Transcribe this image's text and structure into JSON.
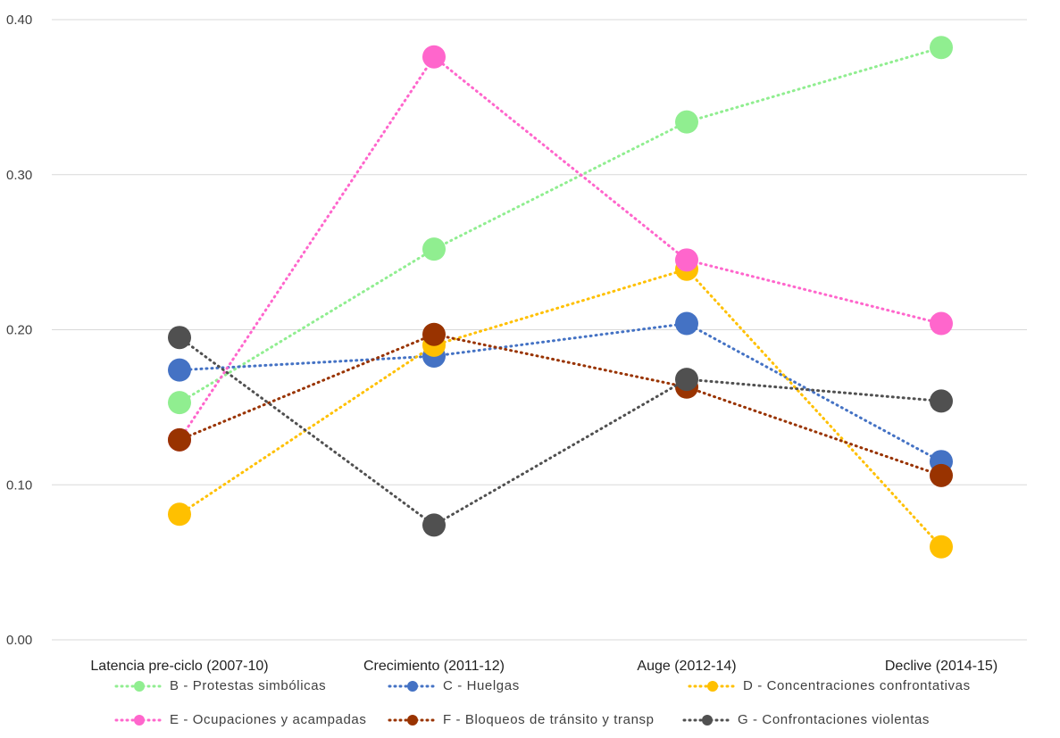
{
  "chart_data": {
    "type": "line",
    "categories": [
      "Latencia pre-ciclo (2007-10)",
      "Crecimiento (2011-12)",
      "Auge (2012-14)",
      "Declive (2014-15)"
    ],
    "ylim": [
      0,
      0.4
    ],
    "yticks": [
      "0.00",
      "0.10",
      "0.20",
      "0.30",
      "0.40"
    ],
    "grid": "horizontal",
    "legend_position": "bottom",
    "line_style": "dotted",
    "series": [
      {
        "name": "B - Protestas simbólicas",
        "color": "#90ee90",
        "values": [
          0.153,
          0.252,
          0.334,
          0.382
        ]
      },
      {
        "name": "C - Huelgas",
        "color": "#4472c4",
        "values": [
          0.174,
          0.183,
          0.204,
          0.115
        ]
      },
      {
        "name": "D - Concentraciones confrontativas",
        "color": "#ffc000",
        "values": [
          0.081,
          0.19,
          0.239,
          0.06
        ]
      },
      {
        "name": "E - Ocupaciones y acampadas",
        "color": "#ff66cc",
        "values": [
          0.129,
          0.376,
          0.245,
          0.204
        ]
      },
      {
        "name": "F - Bloqueos de tránsito y transp",
        "color": "#993300",
        "values": [
          0.129,
          0.197,
          0.163,
          0.106
        ]
      },
      {
        "name": "G - Confrontaciones violentas",
        "color": "#505050",
        "values": [
          0.195,
          0.074,
          0.168,
          0.154
        ]
      }
    ]
  }
}
